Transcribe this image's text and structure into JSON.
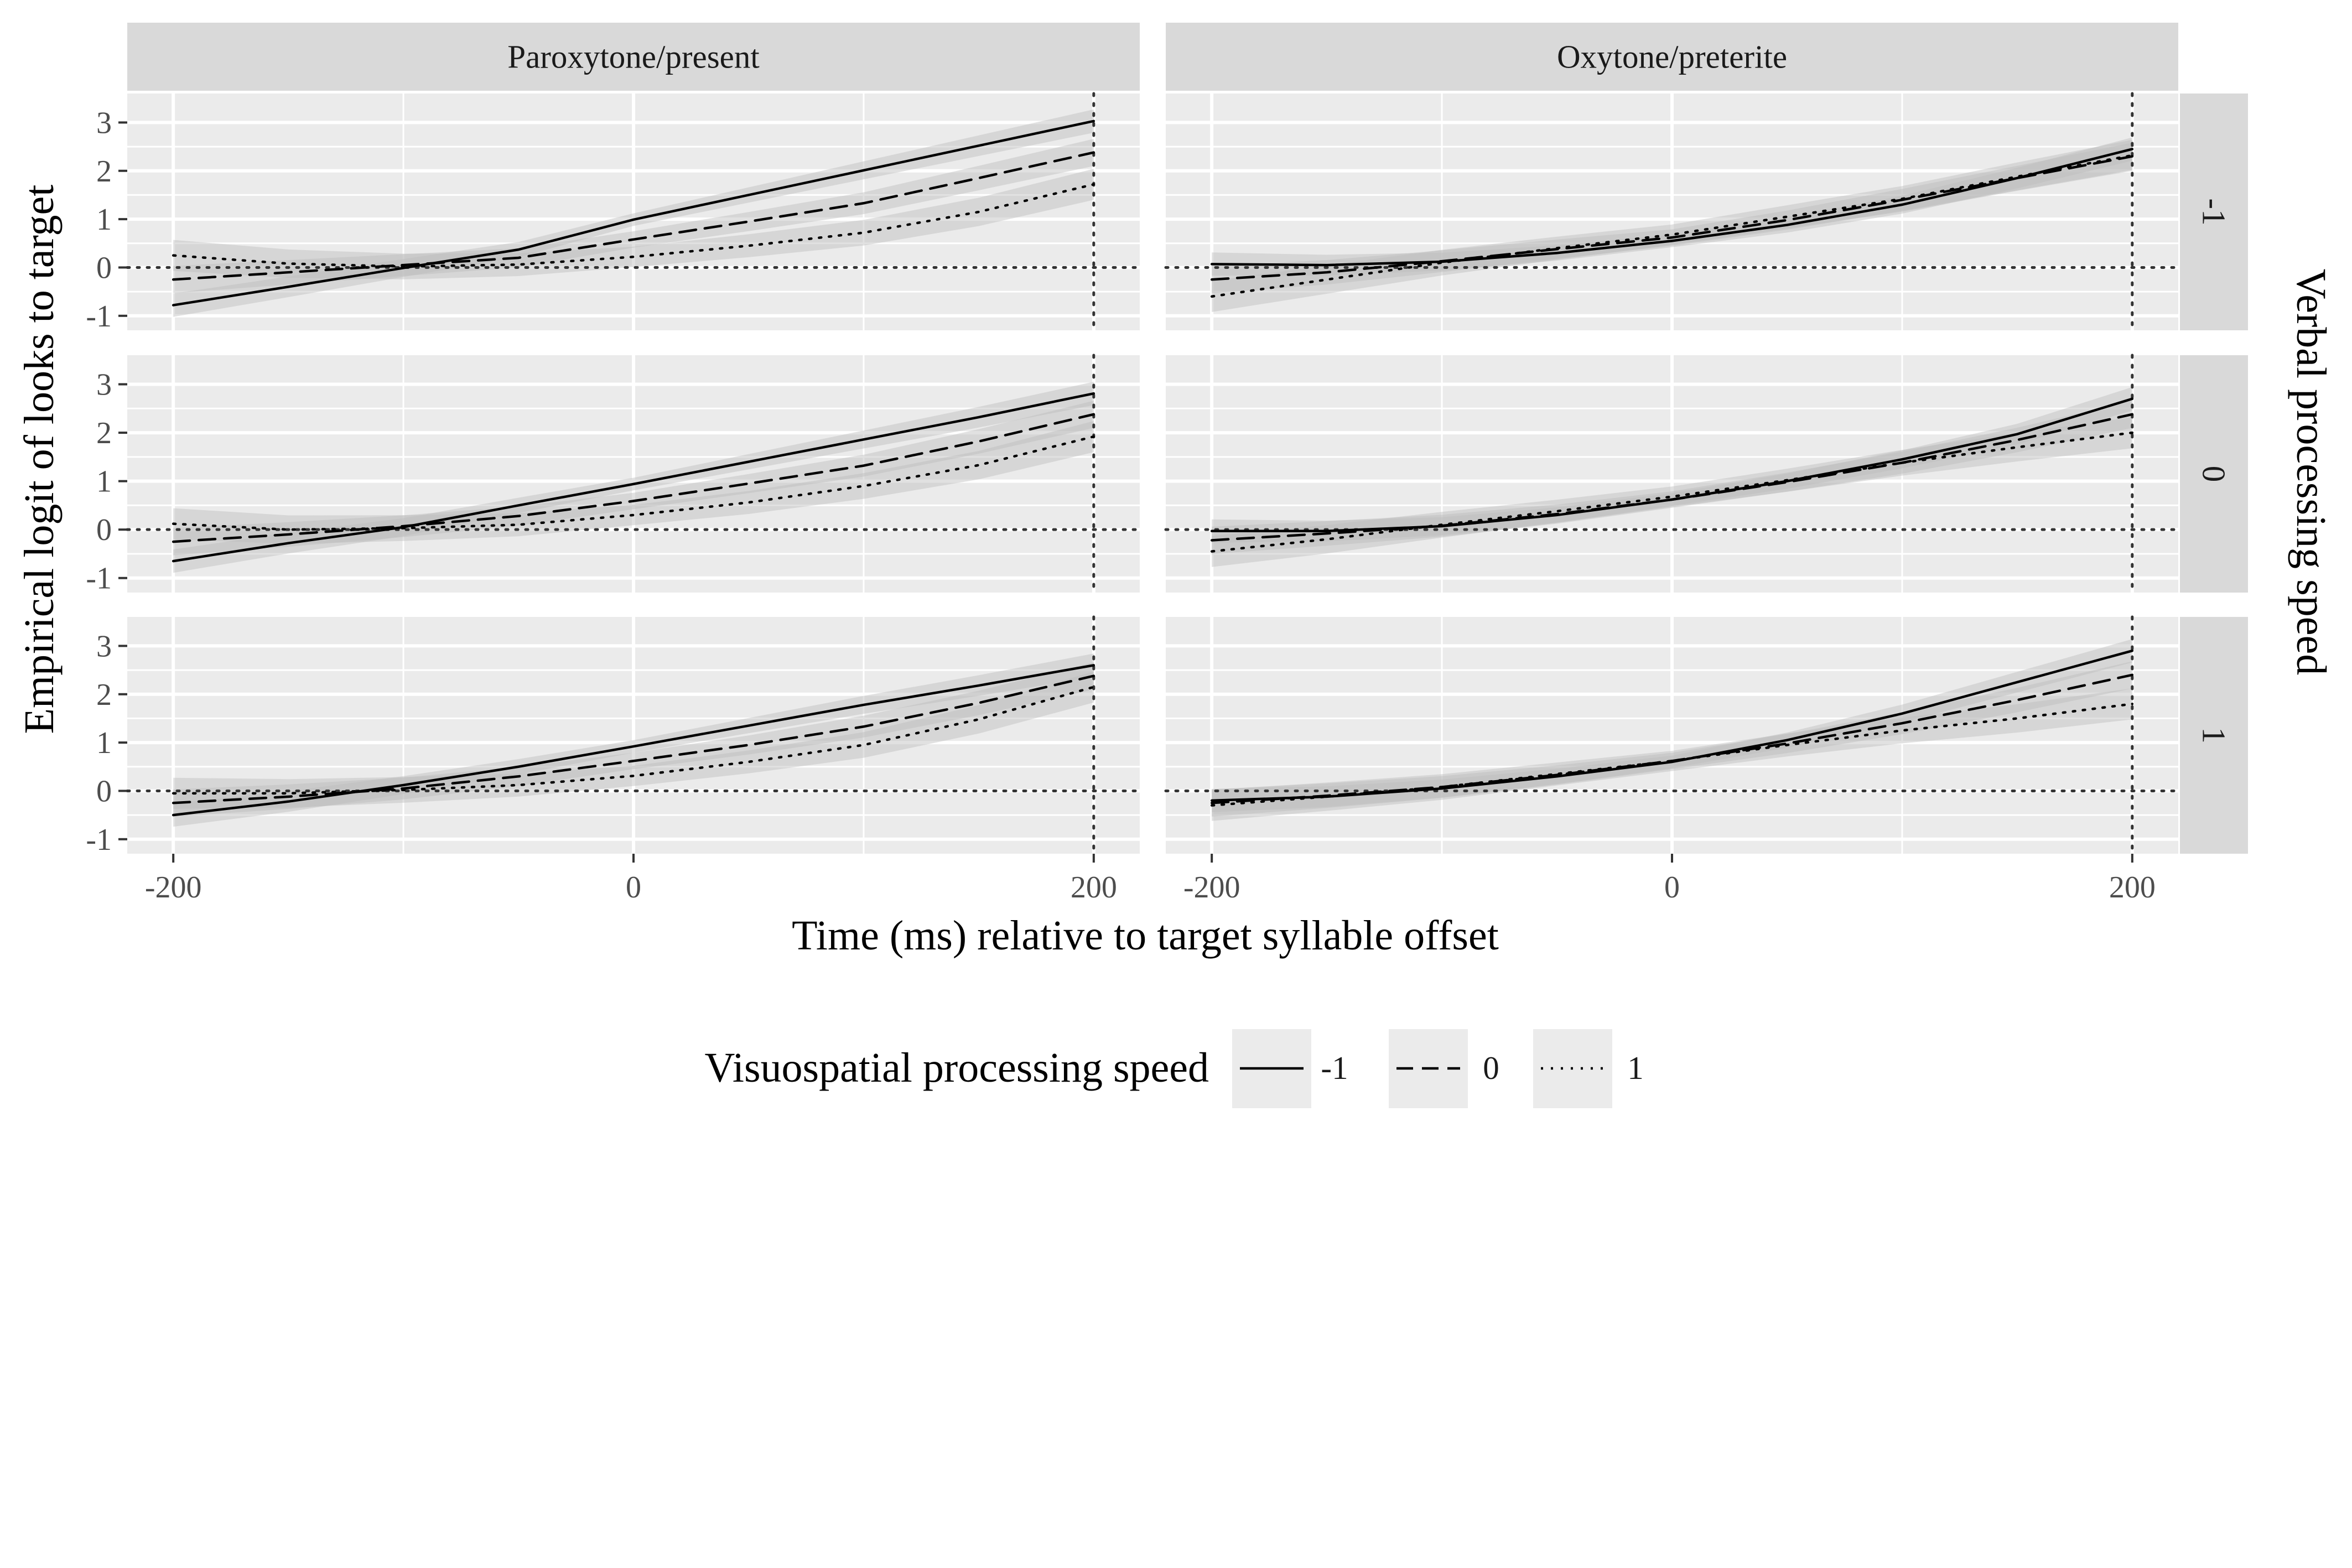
{
  "chart_data": {
    "type": "line",
    "facet_columns": [
      "Paroxytone/present",
      "Oxytone/preterite"
    ],
    "facet_rows": [
      "-1",
      "0",
      "1"
    ],
    "row_facet_title": "Verbal processing speed",
    "xlabel": "Time (ms) relative to target syllable offset",
    "ylabel": "Empirical logit of looks to target",
    "xlim": [
      -220,
      220
    ],
    "ylim": [
      -1.3,
      3.6
    ],
    "x_ticks": [
      -200,
      0,
      200
    ],
    "x_tick_labels": [
      "-200",
      "0",
      "200"
    ],
    "y_ticks": [
      -1,
      0,
      1,
      2,
      3
    ],
    "y_tick_labels": [
      "-1",
      "0",
      "1",
      "2",
      "3"
    ],
    "reference_lines": {
      "x": [
        200
      ],
      "y": [
        0
      ]
    },
    "grid": true,
    "legend": {
      "title": "Visuospatial processing speed",
      "position": "bottom",
      "entries": [
        {
          "label": "-1",
          "linetype": "solid"
        },
        {
          "label": "0",
          "linetype": "dashed"
        },
        {
          "label": "1",
          "linetype": "dotted"
        }
      ]
    },
    "x": [
      -200,
      -150,
      -100,
      -50,
      0,
      50,
      100,
      150,
      200
    ],
    "panels": [
      {
        "column": "Paroxytone/present",
        "row": "-1",
        "series": [
          {
            "name": "-1",
            "values": [
              -0.78,
              -0.4,
              -0.01,
              0.37,
              0.99,
              1.5,
              2.01,
              2.52,
              3.03
            ]
          },
          {
            "name": "0",
            "values": [
              -0.25,
              -0.1,
              0.05,
              0.2,
              0.58,
              0.95,
              1.33,
              1.85,
              2.38
            ]
          },
          {
            "name": "1",
            "values": [
              0.25,
              0.08,
              0.02,
              0.06,
              0.22,
              0.45,
              0.72,
              1.15,
              1.72
            ]
          }
        ]
      },
      {
        "column": "Paroxytone/present",
        "row": "0",
        "series": [
          {
            "name": "-1",
            "values": [
              -0.65,
              -0.28,
              0.05,
              0.5,
              0.94,
              1.4,
              1.86,
              2.32,
              2.81
            ]
          },
          {
            "name": "0",
            "values": [
              -0.25,
              -0.1,
              0.07,
              0.28,
              0.59,
              0.95,
              1.32,
              1.82,
              2.38
            ]
          },
          {
            "name": "1",
            "values": [
              0.12,
              0.0,
              0.03,
              0.1,
              0.3,
              0.56,
              0.9,
              1.33,
              1.92
            ]
          }
        ]
      },
      {
        "column": "Paroxytone/present",
        "row": "1",
        "series": [
          {
            "name": "-1",
            "values": [
              -0.5,
              -0.22,
              0.12,
              0.5,
              0.92,
              1.35,
              1.78,
              2.18,
              2.6
            ]
          },
          {
            "name": "0",
            "values": [
              -0.25,
              -0.12,
              0.05,
              0.3,
              0.62,
              0.95,
              1.33,
              1.82,
              2.38
            ]
          },
          {
            "name": "1",
            "values": [
              -0.05,
              -0.05,
              0.02,
              0.12,
              0.31,
              0.6,
              0.95,
              1.48,
              2.15
            ]
          }
        ]
      },
      {
        "column": "Oxytone/preterite",
        "row": "-1",
        "series": [
          {
            "name": "-1",
            "values": [
              0.07,
              0.05,
              0.12,
              0.3,
              0.55,
              0.88,
              1.3,
              1.85,
              2.45
            ]
          },
          {
            "name": "0",
            "values": [
              -0.25,
              -0.1,
              0.13,
              0.38,
              0.62,
              0.98,
              1.4,
              1.85,
              2.3
            ]
          },
          {
            "name": "1",
            "values": [
              -0.6,
              -0.25,
              0.1,
              0.4,
              0.68,
              1.05,
              1.42,
              1.88,
              2.32
            ]
          }
        ]
      },
      {
        "column": "Oxytone/preterite",
        "row": "0",
        "series": [
          {
            "name": "-1",
            "values": [
              -0.03,
              -0.03,
              0.07,
              0.3,
              0.62,
              1.0,
              1.45,
              1.97,
              2.7
            ]
          },
          {
            "name": "0",
            "values": [
              -0.22,
              -0.08,
              0.08,
              0.32,
              0.62,
              0.98,
              1.38,
              1.85,
              2.38
            ]
          },
          {
            "name": "1",
            "values": [
              -0.45,
              -0.2,
              0.1,
              0.38,
              0.68,
              1.02,
              1.38,
              1.7,
              2.0
            ]
          }
        ]
      },
      {
        "column": "Oxytone/preterite",
        "row": "1",
        "series": [
          {
            "name": "-1",
            "values": [
              -0.2,
              -0.12,
              0.05,
              0.3,
              0.6,
              1.05,
              1.6,
              2.25,
              2.9
            ]
          },
          {
            "name": "0",
            "values": [
              -0.25,
              -0.1,
              0.08,
              0.33,
              0.62,
              0.98,
              1.4,
              1.88,
              2.4
            ]
          },
          {
            "name": "1",
            "values": [
              -0.3,
              -0.12,
              0.08,
              0.35,
              0.62,
              0.95,
              1.25,
              1.5,
              1.8
            ]
          }
        ]
      }
    ]
  }
}
